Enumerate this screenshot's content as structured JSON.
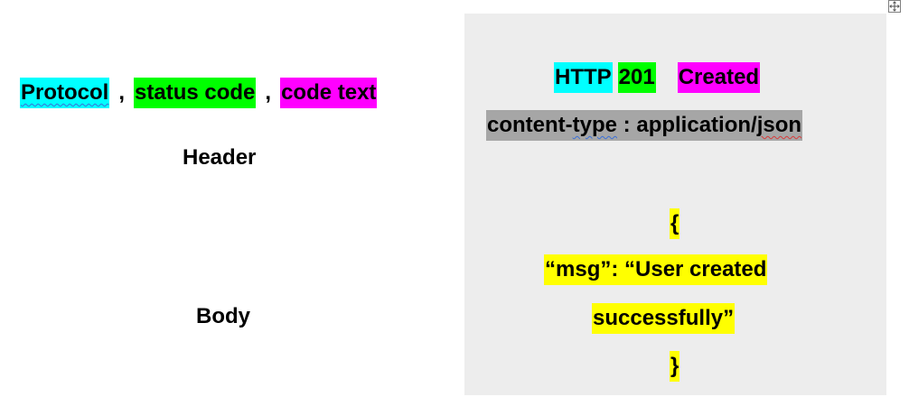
{
  "colors": {
    "protocol_highlight": "#00ffff",
    "status_code_highlight": "#00ff00",
    "code_text_highlight": "#ff00ff",
    "header_highlight": "#a6a6a6",
    "body_highlight": "#ffff00",
    "panel_background": "#ededed"
  },
  "left": {
    "protocol_label": "Protocol",
    "separator_1": ",",
    "status_code_label": "status code",
    "separator_2": ",",
    "code_text_label": "code text",
    "header_label": "Header",
    "body_label": "Body"
  },
  "response": {
    "protocol": "HTTP",
    "status_code": "201",
    "status_text": "Created",
    "header_line": "content-type : application/json",
    "body_lines": [
      "{",
      "“msg”: “User created ",
      "successfully”",
      "}"
    ]
  },
  "icons": {
    "table_move_handle": "move-icon"
  }
}
